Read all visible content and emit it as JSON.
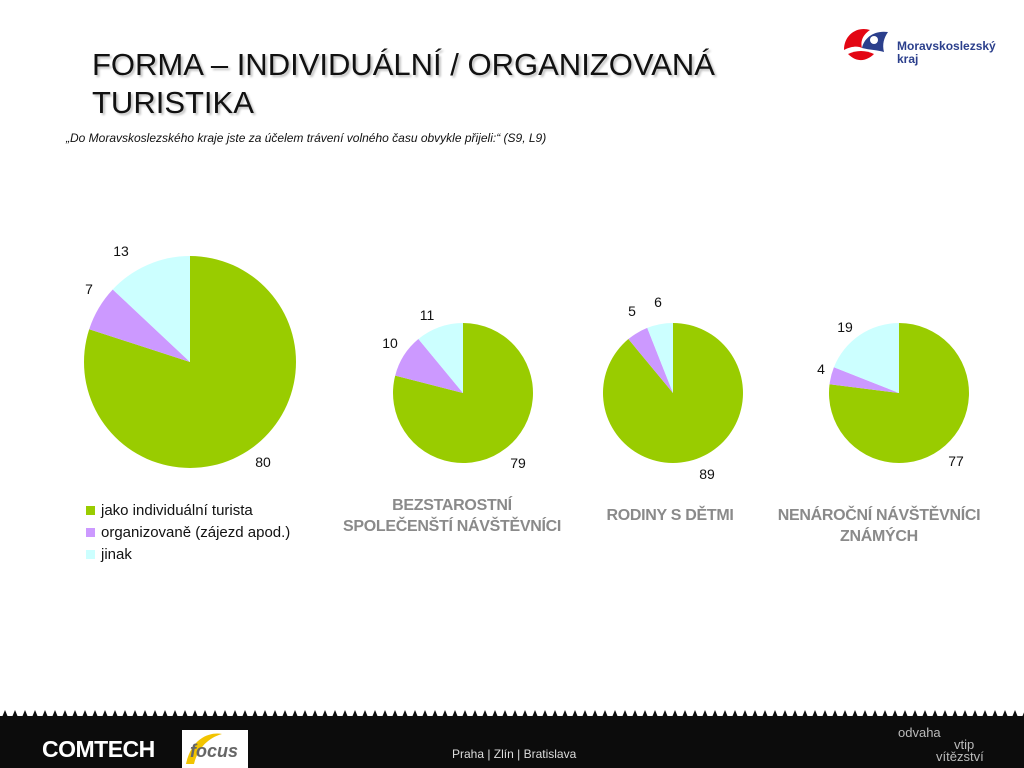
{
  "header": {
    "title_line1": "FORMA – INDIVIDUÁLNÍ / ORGANIZOVANÁ",
    "title_line2": "TURISTIKA",
    "subtitle": "„Do Moravskoslezského kraje jste za účelem trávení volného času obvykle přijeli:“ (S9, L9)"
  },
  "logo": {
    "line1": "Moravskoslezský",
    "line2": "kraj"
  },
  "legend": [
    {
      "label": "jako individuální turista",
      "color": "#99cc00"
    },
    {
      "label": "organizovaně (zájezd apod.)",
      "color": "#cc99ff"
    },
    {
      "label": "jinak",
      "color": "#ccffff"
    }
  ],
  "chart_data": [
    {
      "type": "pie",
      "title": "",
      "categories": [
        "jako individuální turista",
        "organizovaně (zájezd apod.)",
        "jinak"
      ],
      "values": [
        80,
        7,
        13
      ],
      "colors": [
        "#99cc00",
        "#cc99ff",
        "#ccffff"
      ]
    },
    {
      "type": "pie",
      "title": "BEZSTAROSTNÍ SPOLEČENŠTÍ NÁVŠTĚVNÍCI",
      "categories": [
        "jako individuální turista",
        "organizovaně (zájezd apod.)",
        "jinak"
      ],
      "values": [
        79,
        10,
        11
      ],
      "colors": [
        "#99cc00",
        "#cc99ff",
        "#ccffff"
      ]
    },
    {
      "type": "pie",
      "title": "RODINY S DĚTMI",
      "categories": [
        "jako individuální turista",
        "organizovaně (zájezd apod.)",
        "jinak"
      ],
      "values": [
        89,
        5,
        6
      ],
      "colors": [
        "#99cc00",
        "#cc99ff",
        "#ccffff"
      ]
    },
    {
      "type": "pie",
      "title": "NENÁROČNÍ NÁVŠTĚVNÍCI ZNÁMÝCH",
      "categories": [
        "jako individuální turista",
        "organizovaně (zájezd apod.)",
        "jinak"
      ],
      "values": [
        77,
        4,
        19
      ],
      "colors": [
        "#99cc00",
        "#cc99ff",
        "#ccffff"
      ]
    }
  ],
  "group_labels": {
    "g2_line1": "BEZSTAROSTNÍ",
    "g2_line2": "SPOLEČENŠTÍ NÁVŠTĚVNÍCI",
    "g3_line1": "RODINY S DĚTMI",
    "g4_line1": "NENÁROČNÍ NÁVŠTĚVNÍCI",
    "g4_line2": "ZNÁMÝCH"
  },
  "footer": {
    "brand": "COMTECH",
    "partner": "focus",
    "cities": "Praha | Zlín | Bratislava",
    "slogan_1": "odvaha",
    "slogan_2": "vtip",
    "slogan_3": "vítězství"
  }
}
